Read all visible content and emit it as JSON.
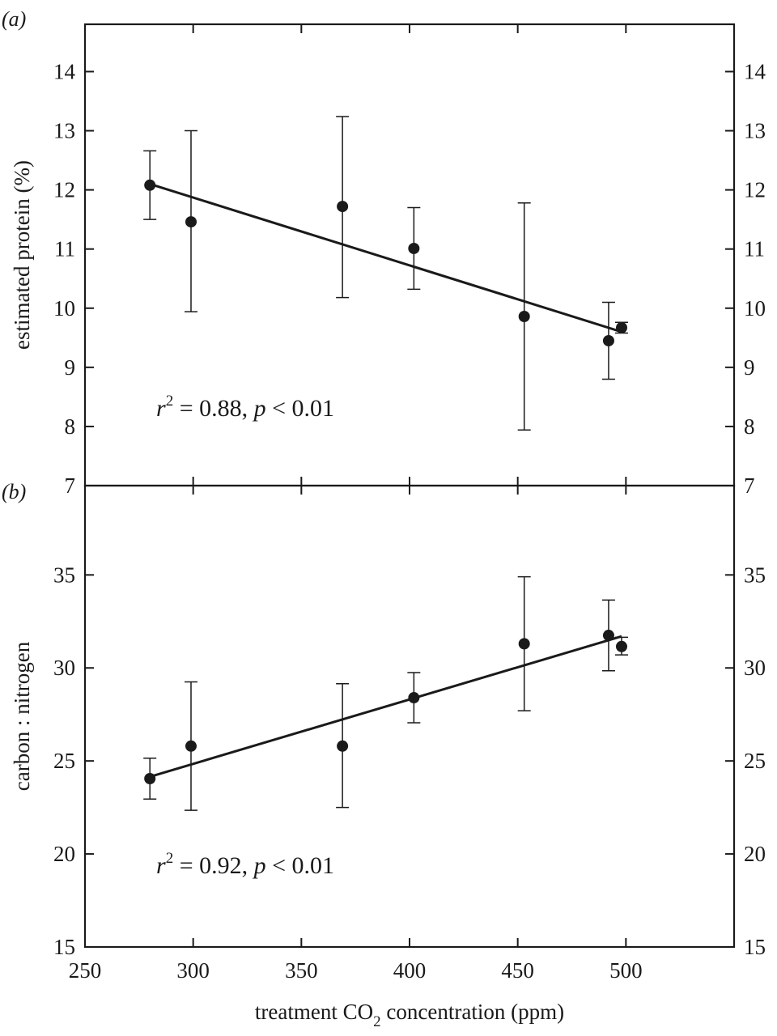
{
  "chart_data": [
    {
      "type": "scatter",
      "panel_label": "(a)",
      "ylabel": "estimated protein (%)",
      "xlim": [
        250,
        550
      ],
      "ylim": [
        7,
        14.8
      ],
      "y_ticks": [
        7,
        8,
        9,
        10,
        11,
        12,
        13,
        14
      ],
      "y_tick_labels": [
        "7",
        "8",
        "9",
        "10",
        "11",
        "12",
        "13",
        "14"
      ],
      "points": [
        {
          "x": 280,
          "y": 12.08,
          "lo": 11.5,
          "hi": 12.66
        },
        {
          "x": 299,
          "y": 11.46,
          "lo": 9.94,
          "hi": 13.0
        },
        {
          "x": 369,
          "y": 11.72,
          "lo": 10.18,
          "hi": 13.24
        },
        {
          "x": 402,
          "y": 11.01,
          "lo": 10.32,
          "hi": 11.7
        },
        {
          "x": 453,
          "y": 9.86,
          "lo": 7.94,
          "hi": 11.78
        },
        {
          "x": 492,
          "y": 9.45,
          "lo": 8.8,
          "hi": 10.1
        },
        {
          "x": 498,
          "y": 9.67,
          "lo": 9.58,
          "hi": 9.76
        }
      ],
      "fit_line": {
        "x": [
          280,
          498
        ],
        "y": [
          12.1,
          9.6
        ]
      },
      "annotation": {
        "r_symbol": "r",
        "exponent": "2",
        "r_value": " = 0.88, ",
        "p_symbol": "p",
        "p_value": " < 0.01"
      }
    },
    {
      "type": "scatter",
      "panel_label": "(b)",
      "ylabel": "carbon : nitrogen",
      "xlabel_parts": {
        "before": "treatment CO",
        "subscript": "2",
        "after": " concentration (ppm)"
      },
      "xlim": [
        250,
        550
      ],
      "ylim": [
        15,
        39.8
      ],
      "x_ticks": [
        250,
        300,
        350,
        400,
        450,
        500
      ],
      "x_tick_labels": [
        "250",
        "300",
        "350",
        "400",
        "450",
        "500"
      ],
      "y_ticks": [
        15,
        20,
        25,
        30,
        35
      ],
      "y_tick_labels": [
        "15",
        "20",
        "25",
        "30",
        "35"
      ],
      "points": [
        {
          "x": 280,
          "y": 24.05,
          "lo": 22.95,
          "hi": 25.15
        },
        {
          "x": 299,
          "y": 25.8,
          "lo": 22.35,
          "hi": 29.25
        },
        {
          "x": 369,
          "y": 25.8,
          "lo": 22.5,
          "hi": 29.15
        },
        {
          "x": 402,
          "y": 28.4,
          "lo": 27.05,
          "hi": 29.75
        },
        {
          "x": 453,
          "y": 31.3,
          "lo": 27.7,
          "hi": 34.9
        },
        {
          "x": 492,
          "y": 31.75,
          "lo": 29.85,
          "hi": 33.65
        },
        {
          "x": 498,
          "y": 31.15,
          "lo": 30.7,
          "hi": 31.65
        }
      ],
      "fit_line": {
        "x": [
          280,
          498
        ],
        "y": [
          24.15,
          31.7
        ]
      },
      "annotation": {
        "r_symbol": "r",
        "exponent": "2",
        "r_value": " = 0.92, ",
        "p_symbol": "p",
        "p_value": " < 0.01"
      }
    }
  ]
}
